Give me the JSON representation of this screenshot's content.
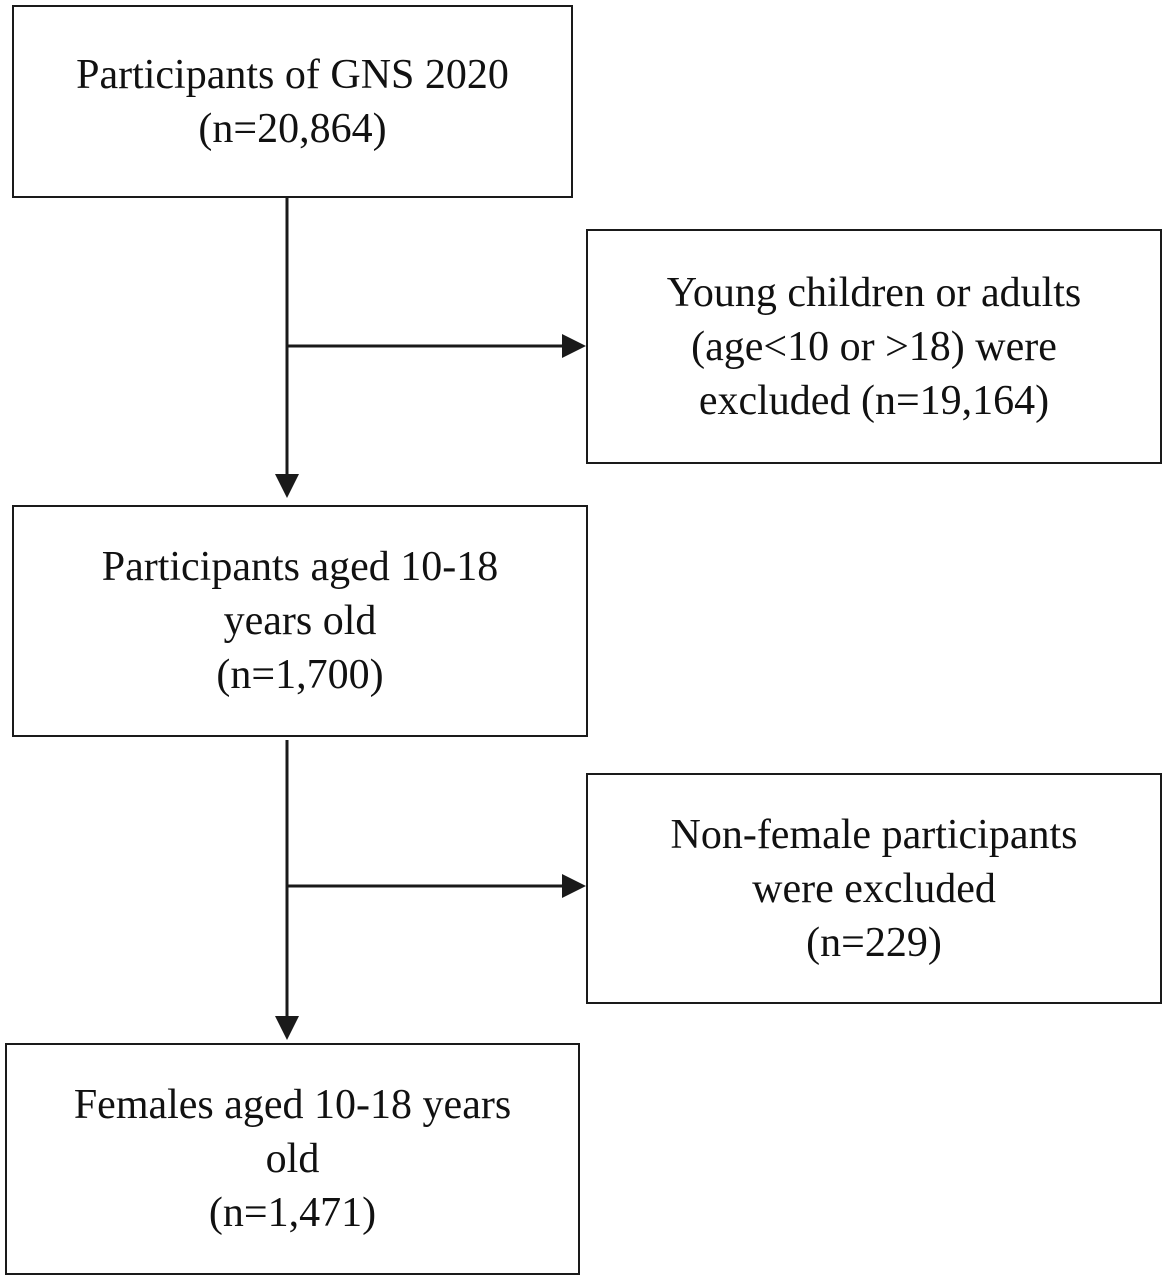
{
  "boxes": {
    "start": {
      "lines": [
        "Participants of GNS 2020",
        "(n=20,864)"
      ]
    },
    "exclusion_1": {
      "lines": [
        "Young children or adults",
        "(age<10 or >18) were",
        "excluded (n=19,164)"
      ]
    },
    "middle": {
      "lines": [
        "Participants aged 10-18",
        "years old",
        "(n=1,700)"
      ]
    },
    "exclusion_2": {
      "lines": [
        "Non-female participants",
        "were excluded",
        "(n=229)"
      ]
    },
    "final": {
      "lines": [
        "Females aged 10-18 years",
        "old",
        "(n=1,471)"
      ]
    }
  },
  "colors": {
    "stroke": "#1a1a1a",
    "text": "#111111",
    "background": "#ffffff"
  }
}
